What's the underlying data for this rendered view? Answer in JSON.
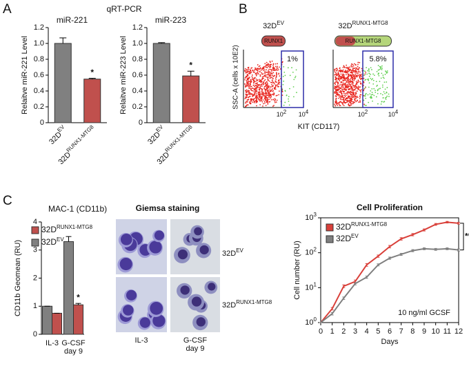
{
  "panel_labels": [
    "A",
    "B",
    "C"
  ],
  "qrtpcr_title": "qRT-PCR",
  "chart_data": [
    {
      "type": "bar",
      "title": "miR-221",
      "y_label": "Relaitve miR-221 Level",
      "categories": [
        "32D",
        "32D"
      ],
      "category_superscripts": [
        "EV",
        "RUNX1-MTG8"
      ],
      "values": [
        1.0,
        0.55
      ],
      "errors": [
        0.07,
        0.01
      ],
      "colors": [
        "#808080",
        "#c0504d"
      ],
      "value_annotations": [
        null,
        "*"
      ],
      "ylim": [
        0,
        1.2
      ],
      "yticks": [
        0,
        0.2,
        0.4,
        0.6,
        0.8,
        {
          "value": 1,
          "label": "1.0"
        },
        1.2
      ]
    },
    {
      "type": "bar",
      "title": "miR-223",
      "y_label": "Relaitve miR-223 Level",
      "categories": [
        "32D",
        "32D"
      ],
      "category_superscripts": [
        "EV",
        "RUNX1-MTG8"
      ],
      "values": [
        1.0,
        0.59
      ],
      "errors": [
        0.01,
        0.06
      ],
      "colors": [
        "#808080",
        "#c0504d"
      ],
      "value_annotations": [
        null,
        "*"
      ],
      "ylim": [
        0,
        1.2
      ],
      "yticks": [
        0,
        0.2,
        0.4,
        0.6,
        0.8,
        {
          "value": 1,
          "label": "1.0"
        },
        1.2
      ]
    },
    {
      "type": "grouped_bar",
      "title": "MAC-1 (CD11b)",
      "y_label": "CD11b Geomean (RU)",
      "categories": [
        "IL-3",
        "G-CSF"
      ],
      "category_sublabels": [
        null,
        "day 9"
      ],
      "legend": "upper left",
      "series": [
        {
          "name": "32D",
          "name_superscript": "RUNX1-MTG8",
          "color": "#c0504d",
          "values": [
            0.75,
            1.05
          ],
          "errors": [
            0,
            0.05
          ],
          "value_annotations": [
            null,
            "*"
          ]
        },
        {
          "name": "32D",
          "name_superscript": "EV",
          "color": "#808080",
          "values": [
            1.0,
            3.3
          ],
          "errors": [
            0,
            0.18
          ],
          "value_annotations": [
            null,
            null
          ]
        }
      ],
      "ylim": [
        0,
        4
      ],
      "yticks": [
        0,
        1,
        2,
        3,
        4
      ]
    },
    {
      "type": "line",
      "title": "Cell Proliferation",
      "x_label": "Days",
      "y_label": "Cell number (RU)",
      "log_scale": true,
      "legend": "upper left",
      "annotations": [
        "10 ng/ml GCSF",
        "***"
      ],
      "x": [
        0,
        1,
        2,
        3,
        4,
        5,
        6,
        7,
        8,
        9,
        10,
        11,
        12
      ],
      "xlim": [
        0,
        12
      ],
      "xticks": [
        0,
        1,
        2,
        3,
        4,
        5,
        6,
        7,
        8,
        9,
        10,
        11,
        12
      ],
      "ylim": [
        1,
        1000
      ],
      "yticks": [
        {
          "value": 1,
          "label": "10",
          "exponent": "0"
        },
        {
          "value": 10,
          "label": "10",
          "exponent": "1"
        },
        {
          "value": 100,
          "label": "10",
          "exponent": "2"
        },
        {
          "value": 1000,
          "label": "10",
          "exponent": "3"
        }
      ],
      "series": [
        {
          "name": "32D",
          "name_superscript": "RUNX1-MTG8",
          "color": "#d9403a",
          "values": [
            1,
            2.5,
            11,
            15,
            45,
            80,
            150,
            250,
            330,
            450,
            650,
            750,
            700
          ],
          "errors": [
            0,
            0.2,
            1,
            1.5,
            4,
            6,
            12,
            20,
            25,
            30,
            40,
            40,
            40
          ]
        },
        {
          "name": "32D",
          "name_superscript": "EV",
          "color": "#7f7f7f",
          "values": [
            1,
            1.8,
            5,
            13,
            20,
            45,
            70,
            90,
            115,
            130,
            125,
            130,
            120
          ],
          "errors": [
            0,
            0.15,
            0.4,
            1,
            1.5,
            3,
            5,
            6,
            8,
            8,
            8,
            8,
            8
          ]
        }
      ]
    }
  ],
  "flow": {
    "y_label": "SSC-A (cells x 10E2)",
    "x_label": "KIT (CD117)",
    "plots": [
      {
        "name": "32D",
        "name_superscript": "EV",
        "construct": "RUNX1",
        "gate_percent": "1%"
      },
      {
        "name": "32D",
        "name_superscript": "RUNX1-MTG8",
        "construct": "RUNX1-MTG8",
        "gate_percent": "5.8%"
      }
    ],
    "x_tick_labels": [
      {
        "base": "10",
        "exponent": "2"
      },
      {
        "base": "10",
        "exponent": "4"
      }
    ]
  },
  "giemsa": {
    "title": "Giemsa staining",
    "row_labels": [
      {
        "name": "32D",
        "name_superscript": "EV"
      },
      {
        "name": "32D",
        "name_superscript": "RUNX1-MTG8"
      }
    ],
    "column_labels": [
      [
        "IL-3"
      ],
      [
        "G-CSF",
        "day 9"
      ]
    ]
  }
}
